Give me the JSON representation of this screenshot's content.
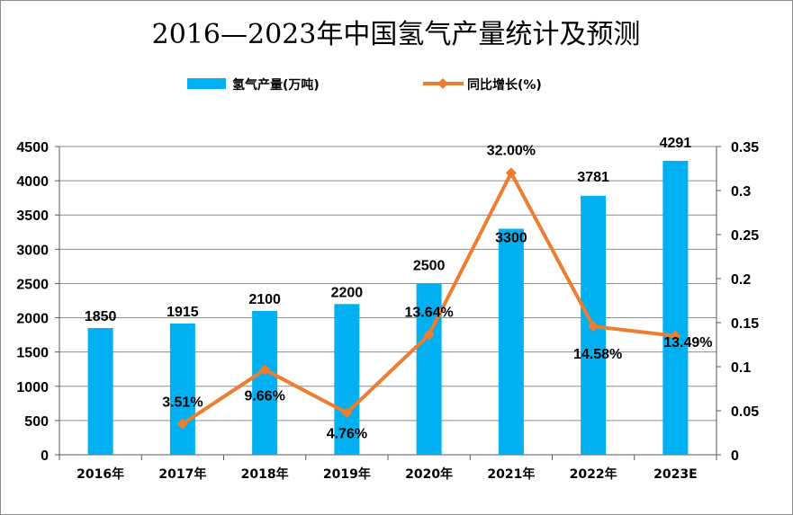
{
  "chart_data": {
    "type": "bar",
    "title": "2016—2023年中国氢气产量统计及预测",
    "categories": [
      "2016年",
      "2017年",
      "2018年",
      "2019年",
      "2020年",
      "2021年",
      "2022年",
      "2023E"
    ],
    "series": [
      {
        "name": "氢气产量(万吨)",
        "type": "bar",
        "axis": "left",
        "color": "#00b0f0",
        "values": [
          1850,
          1915,
          2100,
          2200,
          2500,
          3300,
          3781,
          4291
        ],
        "labels": [
          "1850",
          "1915",
          "2100",
          "2200",
          "2500",
          "3300",
          "3781",
          "4291"
        ]
      },
      {
        "name": "同比增长(%)",
        "type": "line",
        "axis": "right",
        "color": "#ed7d31",
        "marker": "diamond",
        "values": [
          null,
          0.0351,
          0.0966,
          0.0476,
          0.1364,
          0.32,
          0.1458,
          0.1349
        ],
        "labels": [
          null,
          "3.51%",
          "9.66%",
          "4.76%",
          "13.64%",
          "32.00%",
          "14.58%",
          "13.49%"
        ]
      }
    ],
    "y_left": {
      "min": 0,
      "max": 4500,
      "ticks": [
        0,
        500,
        1000,
        1500,
        2000,
        2500,
        3000,
        3500,
        4000,
        4500
      ],
      "tick_labels": [
        "0",
        "500",
        "1000",
        "1500",
        "2000",
        "2500",
        "3000",
        "3500",
        "4000",
        "4500"
      ]
    },
    "y_right": {
      "min": 0,
      "max": 0.35,
      "ticks": [
        0,
        0.05,
        0.1,
        0.15,
        0.2,
        0.25,
        0.3,
        0.35
      ],
      "tick_labels": [
        "0",
        "0.05",
        "0.1",
        "0.15",
        "0.2",
        "0.25",
        "0.3",
        "0.35"
      ]
    },
    "grid": true,
    "legend_position": "top"
  }
}
